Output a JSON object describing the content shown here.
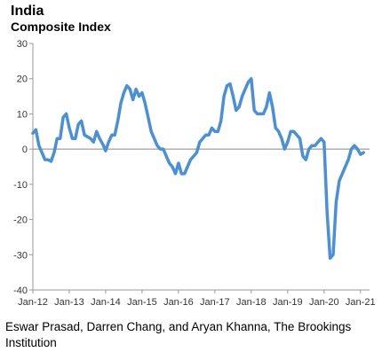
{
  "chart_data": {
    "type": "line",
    "title": "India",
    "subtitle": "Composite Index",
    "xlabel": "",
    "ylabel": "",
    "ylim": [
      -40,
      30
    ],
    "yticks": [
      30,
      20,
      10,
      0,
      -10,
      -20,
      -30,
      -40
    ],
    "xticks": [
      "Jan-12",
      "Jan-13",
      "Jan-14",
      "Jan-15",
      "Jan-16",
      "Jan-17",
      "Jan-18",
      "Jan-19",
      "Jan-20",
      "Jan-21"
    ],
    "grid": false,
    "zero_line": true,
    "line_color": "#4a90d9",
    "series": [
      {
        "x": [
          2012.0,
          2012.083,
          2012.167,
          2012.25,
          2012.333,
          2012.417,
          2012.5,
          2012.583,
          2012.667,
          2012.75,
          2012.833,
          2012.917,
          2013.0,
          2013.083,
          2013.167,
          2013.25,
          2013.333,
          2013.417,
          2013.5,
          2013.583,
          2013.667,
          2013.75,
          2013.833,
          2013.917,
          2014.0,
          2014.083,
          2014.167,
          2014.25,
          2014.333,
          2014.417,
          2014.5,
          2014.583,
          2014.667,
          2014.75,
          2014.833,
          2014.917,
          2015.0,
          2015.083,
          2015.167,
          2015.25,
          2015.333,
          2015.417,
          2015.5,
          2015.583,
          2015.667,
          2015.75,
          2015.833,
          2015.917,
          2016.0,
          2016.083,
          2016.167,
          2016.25,
          2016.333,
          2016.417,
          2016.5,
          2016.583,
          2016.667,
          2016.75,
          2016.833,
          2016.917,
          2017.0,
          2017.083,
          2017.167,
          2017.25,
          2017.333,
          2017.417,
          2017.5,
          2017.583,
          2017.667,
          2017.75,
          2017.833,
          2017.917,
          2018.0,
          2018.083,
          2018.167,
          2018.25,
          2018.333,
          2018.417,
          2018.5,
          2018.583,
          2018.667,
          2018.75,
          2018.833,
          2018.917,
          2019.0,
          2019.083,
          2019.167,
          2019.25,
          2019.333,
          2019.417,
          2019.5,
          2019.583,
          2019.667,
          2019.75,
          2019.833,
          2019.917,
          2020.0,
          2020.083,
          2020.167,
          2020.25,
          2020.333,
          2020.417,
          2020.5,
          2020.583,
          2020.667,
          2020.75,
          2020.833,
          2020.917,
          2021.0,
          2021.083
        ],
        "values": [
          4.5,
          5.5,
          1,
          -1,
          -3,
          -3,
          -3.5,
          -1,
          3,
          3,
          9,
          10,
          6,
          3,
          3,
          7,
          8,
          4,
          3.5,
          3,
          2,
          5,
          3,
          1.5,
          -0.5,
          2,
          4,
          4,
          8,
          13,
          16,
          18,
          17,
          14,
          17,
          15,
          16,
          13,
          9,
          5,
          3,
          1,
          0,
          0,
          -2,
          -4,
          -5,
          -7,
          -4,
          -7,
          -7,
          -5,
          -3,
          -2,
          -1,
          2,
          3,
          4,
          4,
          6,
          5,
          5,
          8,
          15,
          18,
          18.5,
          15,
          11,
          12,
          15,
          17,
          19,
          20,
          11,
          10,
          10,
          10,
          12,
          16,
          12,
          6,
          5,
          3,
          0,
          2,
          5,
          5,
          4,
          3,
          -2,
          -3,
          0,
          1,
          1,
          2,
          3,
          2,
          -18,
          -31,
          -30,
          -15,
          -9,
          -7,
          -5,
          -3,
          0,
          1,
          0,
          -1.5,
          -1
        ]
      }
    ],
    "credit": "Eswar Prasad, Darren Chang, and Aryan Khanna, The Brookings Institution"
  }
}
